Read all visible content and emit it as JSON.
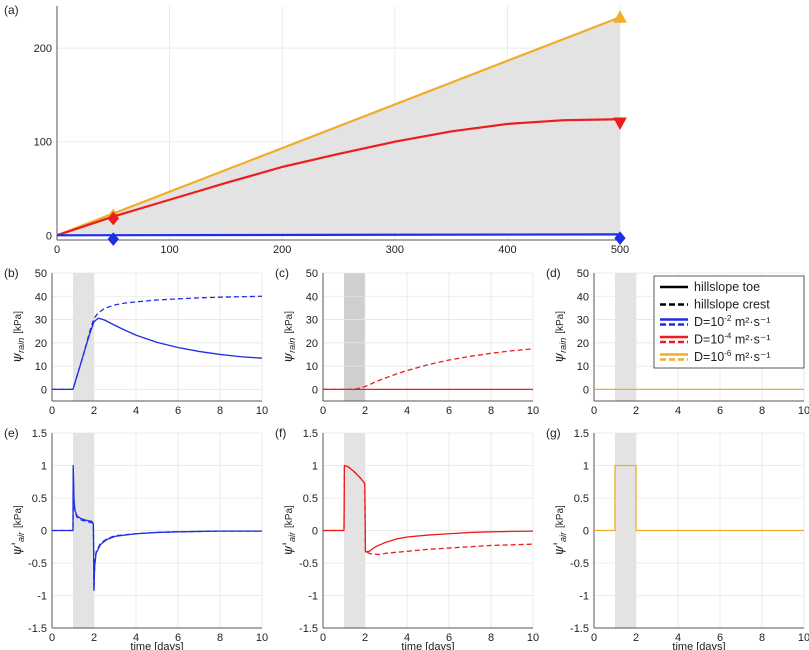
{
  "colors": {
    "blue": "#1f2ee6",
    "red": "#ee1c1c",
    "orange": "#f0ad28",
    "grid": "#e6e6e6",
    "shade": "#e3e3e3",
    "shade_dark": "#cfcfcf",
    "axis": "#555555"
  },
  "legend": {
    "entries": [
      {
        "key": "toe",
        "label": "hillslope toe",
        "style": "solid",
        "color": "#000000",
        "sup": ""
      },
      {
        "key": "crest",
        "label": "hillslope crest",
        "style": "dashed",
        "color": "#000000",
        "sup": ""
      },
      {
        "key": "d2",
        "pre": "D=10",
        "sup": "-2",
        "post": " m²·s⁻¹",
        "color": "#1f2ee6"
      },
      {
        "key": "d4",
        "pre": "D=10",
        "sup": "-4",
        "post": " m²·s⁻¹",
        "color": "#ee1c1c"
      },
      {
        "key": "d6",
        "pre": "D=10",
        "sup": "-6",
        "post": " m²·s⁻¹",
        "color": "#f0ad28"
      }
    ]
  },
  "chart_data": [
    {
      "id": "a",
      "panel_label": "(a)",
      "type": "area",
      "xlim": [
        0,
        500
      ],
      "ylim": [
        -5,
        245
      ],
      "xticks": [
        0,
        100,
        200,
        300,
        400,
        500
      ],
      "yticks": [
        0,
        100,
        200
      ],
      "xlabel": "",
      "ylabel": "",
      "grid": true,
      "shaded_area": {
        "x": [
          0,
          500
        ],
        "upper": [
          0,
          233
        ],
        "lower": [
          0,
          0
        ]
      },
      "series": [
        {
          "color": "orange",
          "x": [
            0,
            500
          ],
          "y": [
            0,
            233
          ],
          "markers": [
            {
              "x": 50,
              "y": 21,
              "shape": "diamond"
            },
            {
              "x": 500,
              "y": 233,
              "shape": "triangle-up"
            }
          ]
        },
        {
          "color": "red",
          "x": [
            0,
            25,
            50,
            100,
            150,
            200,
            250,
            300,
            350,
            400,
            450,
            500
          ],
          "y": [
            0,
            10,
            20,
            38,
            56,
            73,
            87,
            100,
            111,
            119,
            123,
            124
          ],
          "markers": [
            {
              "x": 50,
              "y": 18,
              "shape": "diamond"
            },
            {
              "x": 500,
              "y": 120,
              "shape": "triangle-down"
            }
          ]
        },
        {
          "color": "blue",
          "x": [
            0,
            500
          ],
          "y": [
            0,
            1
          ],
          "markers": [
            {
              "x": 50,
              "y": -4,
              "shape": "diamond"
            },
            {
              "x": 500,
              "y": -3,
              "shape": "diamond"
            }
          ]
        }
      ]
    },
    {
      "id": "b",
      "panel_label": "(b)",
      "type": "line",
      "xlim": [
        0,
        10
      ],
      "ylim": [
        -5,
        50
      ],
      "xticks": [
        0,
        2,
        4,
        6,
        8,
        10
      ],
      "yticks": [
        0,
        10,
        20,
        30,
        40,
        50
      ],
      "xlabel": "",
      "ylabel": "ψrain [kPa]",
      "ylabel_sym": "ψ",
      "ylabel_sub": "rain",
      "ylabel_unit": "[kPa]",
      "grid": true,
      "shade": {
        "x0": 1,
        "x1": 2,
        "dark": false
      },
      "series": [
        {
          "color": "blue",
          "style": "solid",
          "x": [
            0,
            1,
            1.2,
            1.5,
            1.8,
            2.0,
            2.2,
            2.5,
            3,
            3.5,
            4,
            5,
            6,
            7,
            8,
            9,
            10
          ],
          "y": [
            0,
            0,
            6,
            15,
            24,
            29,
            30.6,
            29.8,
            27.5,
            25.3,
            23.3,
            20.2,
            18.0,
            16.3,
            15.0,
            14.0,
            13.4
          ]
        },
        {
          "color": "blue",
          "style": "dashed",
          "x": [
            0,
            1,
            1.2,
            1.5,
            1.8,
            2.0,
            2.2,
            2.5,
            3,
            3.5,
            4,
            5,
            6,
            7,
            8,
            9,
            10
          ],
          "y": [
            0,
            0,
            6,
            15,
            25,
            30.5,
            32.8,
            34.8,
            36.3,
            37.1,
            37.6,
            38.4,
            38.9,
            39.3,
            39.6,
            39.8,
            40.0
          ]
        }
      ]
    },
    {
      "id": "c",
      "panel_label": "(c)",
      "type": "line",
      "xlim": [
        0,
        10
      ],
      "ylim": [
        -5,
        50
      ],
      "xticks": [
        0,
        2,
        4,
        6,
        8,
        10
      ],
      "yticks": [
        0,
        10,
        20,
        30,
        40,
        50
      ],
      "xlabel": "",
      "ylabel": "ψrain [kPa]",
      "ylabel_sym": "ψ",
      "ylabel_sub": "rain",
      "ylabel_unit": "[kPa]",
      "grid": true,
      "shade": {
        "x0": 1,
        "x1": 2,
        "dark": true
      },
      "series": [
        {
          "color": "red",
          "style": "solid",
          "x": [
            0,
            10
          ],
          "y": [
            0,
            0
          ]
        },
        {
          "color": "red",
          "style": "dashed",
          "x": [
            0,
            1.5,
            2,
            2.5,
            3,
            3.5,
            4,
            5,
            6,
            7,
            8,
            9,
            10
          ],
          "y": [
            0,
            0,
            1.2,
            3.2,
            5.0,
            6.6,
            8.1,
            10.6,
            12.6,
            14.2,
            15.5,
            16.6,
            17.4
          ]
        }
      ]
    },
    {
      "id": "d",
      "panel_label": "(d)",
      "type": "line",
      "xlim": [
        0,
        10
      ],
      "ylim": [
        -5,
        50
      ],
      "xticks": [
        0,
        2,
        4,
        6,
        8,
        10
      ],
      "yticks": [
        0,
        10,
        20,
        30,
        40,
        50
      ],
      "xlabel": "",
      "ylabel": "ψrain [kPa]",
      "ylabel_sym": "ψ",
      "ylabel_sub": "rain",
      "ylabel_unit": "[kPa]",
      "grid": true,
      "shade": {
        "x0": 1,
        "x1": 2,
        "dark": false
      },
      "series": [
        {
          "color": "orange",
          "style": "solid",
          "x": [
            0,
            10
          ],
          "y": [
            0,
            0
          ]
        }
      ]
    },
    {
      "id": "e",
      "panel_label": "(e)",
      "type": "line",
      "xlim": [
        0,
        10
      ],
      "ylim": [
        -1.5,
        1.5
      ],
      "xticks": [
        0,
        2,
        4,
        6,
        8,
        10
      ],
      "yticks": [
        -1.5,
        -1,
        -0.5,
        0,
        0.5,
        1,
        1.5
      ],
      "xlabel": "time [days]",
      "ylabel": "ψ'air [kPa]",
      "ylabel_sym": "ψ'",
      "ylabel_sub": "air",
      "ylabel_unit": "[kPa]",
      "grid": true,
      "shade": {
        "x0": 1,
        "x1": 2,
        "dark": false
      },
      "series": [
        {
          "color": "blue",
          "style": "solid",
          "x": [
            0,
            1,
            1.01,
            1.05,
            1.1,
            1.2,
            1.4,
            1.6,
            1.9,
            1.97,
            2.0,
            2.03,
            2.1,
            2.3,
            2.6,
            3,
            4,
            5,
            6,
            8,
            10
          ],
          "y": [
            0,
            0,
            1.0,
            0.45,
            0.3,
            0.22,
            0.18,
            0.16,
            0.14,
            0.1,
            -0.92,
            -0.55,
            -0.35,
            -0.22,
            -0.14,
            -0.09,
            -0.05,
            -0.03,
            -0.02,
            -0.01,
            -0.01
          ]
        },
        {
          "color": "blue",
          "style": "dashed",
          "x": [
            0,
            1,
            1.01,
            1.05,
            1.1,
            1.2,
            1.4,
            1.6,
            1.9,
            1.97,
            2.0,
            2.03,
            2.1,
            2.3,
            2.6,
            3,
            4,
            5,
            6,
            8,
            10
          ],
          "y": [
            0,
            0,
            0.95,
            0.4,
            0.28,
            0.2,
            0.16,
            0.14,
            0.12,
            0.1,
            -0.9,
            -0.52,
            -0.33,
            -0.2,
            -0.13,
            -0.08,
            -0.05,
            -0.03,
            -0.02,
            -0.01,
            -0.01
          ]
        }
      ]
    },
    {
      "id": "f",
      "panel_label": "(f)",
      "type": "line",
      "xlim": [
        0,
        10
      ],
      "ylim": [
        -1.5,
        1.5
      ],
      "xticks": [
        0,
        2,
        4,
        6,
        8,
        10
      ],
      "yticks": [
        -1.5,
        -1,
        -0.5,
        0,
        0.5,
        1,
        1.5
      ],
      "xlabel": "time [days]",
      "ylabel": "ψ'air [kPa]",
      "ylabel_sym": "ψ'",
      "ylabel_sub": "air",
      "ylabel_unit": "[kPa]",
      "grid": true,
      "shade": {
        "x0": 1,
        "x1": 2,
        "dark": false
      },
      "series": [
        {
          "color": "red",
          "style": "solid",
          "x": [
            0,
            1,
            1.02,
            1.2,
            1.5,
            1.8,
            1.99,
            2.02,
            2.2,
            2.5,
            3,
            3.5,
            4,
            5,
            6,
            7,
            8,
            10
          ],
          "y": [
            0,
            0,
            1.0,
            0.98,
            0.9,
            0.8,
            0.72,
            -0.33,
            -0.32,
            -0.25,
            -0.18,
            -0.13,
            -0.1,
            -0.07,
            -0.05,
            -0.03,
            -0.02,
            -0.01
          ]
        },
        {
          "color": "red",
          "style": "dashed",
          "x": [
            0,
            1,
            1.02,
            1.2,
            1.5,
            1.8,
            1.99,
            2.02,
            2.3,
            2.7,
            3,
            4,
            5,
            6,
            7,
            8,
            10
          ],
          "y": [
            0,
            0,
            1.0,
            0.98,
            0.9,
            0.8,
            0.72,
            -0.33,
            -0.36,
            -0.37,
            -0.35,
            -0.32,
            -0.29,
            -0.27,
            -0.25,
            -0.23,
            -0.21
          ]
        }
      ]
    },
    {
      "id": "g",
      "panel_label": "(g)",
      "type": "line",
      "xlim": [
        0,
        10
      ],
      "ylim": [
        -1.5,
        1.5
      ],
      "xticks": [
        0,
        2,
        4,
        6,
        8,
        10
      ],
      "yticks": [
        -1.5,
        -1,
        -0.5,
        0,
        0.5,
        1,
        1.5
      ],
      "xlabel": "time [days]",
      "ylabel": "ψ'air [kPa]",
      "ylabel_sym": "ψ'",
      "ylabel_sub": "air",
      "ylabel_unit": "[kPa]",
      "grid": true,
      "shade": {
        "x0": 1,
        "x1": 2,
        "dark": false
      },
      "series": [
        {
          "color": "orange",
          "style": "solid",
          "x": [
            0,
            1,
            1,
            2,
            2,
            10
          ],
          "y": [
            0,
            0,
            1,
            1,
            0,
            0
          ]
        }
      ]
    }
  ]
}
